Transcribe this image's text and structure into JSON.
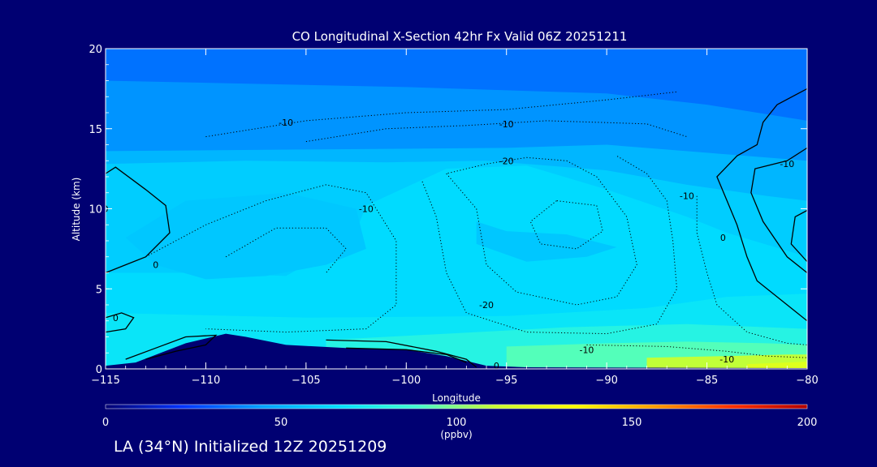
{
  "chart_data": {
    "type": "contour",
    "title": "CO Longitudinal X-Section 42hr  Fx Valid 06Z 20251211",
    "xlabel": "Longitude",
    "ylabel": "Altitude (km)",
    "xlim": [
      -115,
      -80
    ],
    "ylim": [
      0,
      20
    ],
    "x_ticks": [
      "-115",
      "-110",
      "-105",
      "-100",
      "-95",
      "-90",
      "-85",
      "-80"
    ],
    "y_ticks": [
      "0",
      "5",
      "10",
      "15",
      "20"
    ],
    "contour_labels": [
      "-10",
      "-10",
      "-20",
      "-10",
      "-20",
      "-10",
      "-10",
      "-10",
      "-10",
      "0",
      "0",
      "0",
      "0",
      "0"
    ],
    "colorbar": {
      "ticks": [
        "0",
        "50",
        "100",
        "150",
        "200"
      ],
      "unit": "(ppbv)",
      "range": [
        0,
        200
      ],
      "colors": [
        "#000072",
        "#0033ff",
        "#00a0ff",
        "#00e0ff",
        "#40ffd0",
        "#c8ff30",
        "#ffff00",
        "#ffa000",
        "#ff3000",
        "#b00000"
      ]
    },
    "terrain": [
      [
        -115,
        0.2
      ],
      [
        -113.5,
        0.4
      ],
      [
        -111,
        1.6
      ],
      [
        -109,
        2.2
      ],
      [
        -108,
        2.0
      ],
      [
        -106,
        1.5
      ],
      [
        -103,
        1.3
      ],
      [
        -100,
        1.2
      ],
      [
        -98,
        0.8
      ],
      [
        -96,
        0.2
      ],
      [
        -94,
        0.1
      ],
      [
        -80,
        0.05
      ]
    ],
    "bands": [
      {
        "value": 35,
        "pts": [
          [
            -115,
            20
          ],
          [
            -80,
            20
          ],
          [
            -80,
            0
          ],
          [
            -115,
            0
          ]
        ]
      },
      {
        "value": 42,
        "pts": [
          [
            -115,
            18
          ],
          [
            -100,
            17.6
          ],
          [
            -90,
            17.2
          ],
          [
            -85,
            16.5
          ],
          [
            -80,
            15.5
          ],
          [
            -80,
            0
          ],
          [
            -115,
            0
          ]
        ]
      },
      {
        "value": 52,
        "pts": [
          [
            -115,
            13.6
          ],
          [
            -105,
            13.7
          ],
          [
            -95,
            13.8
          ],
          [
            -90,
            14
          ],
          [
            -85,
            13.5
          ],
          [
            -80,
            13
          ],
          [
            -80,
            0
          ],
          [
            -115,
            0
          ]
        ]
      },
      {
        "value": 60,
        "pts": [
          [
            -115,
            12.8
          ],
          [
            -108,
            13
          ],
          [
            -101,
            12.9
          ],
          [
            -96,
            13
          ],
          [
            -90,
            12.4
          ],
          [
            -86,
            11.5
          ],
          [
            -82,
            10.8
          ],
          [
            -80,
            10.5
          ],
          [
            -80,
            0
          ],
          [
            -115,
            0
          ]
        ]
      },
      {
        "value": 65,
        "pts": [
          [
            -115,
            6
          ],
          [
            -110,
            6
          ],
          [
            -106,
            5.8
          ],
          [
            -105,
            6.5
          ],
          [
            -103,
            7
          ],
          [
            -102,
            10.2
          ],
          [
            -98,
            12.5
          ],
          [
            -94,
            12.7
          ],
          [
            -90,
            11.2
          ],
          [
            -86,
            9.5
          ],
          [
            -84,
            8.5
          ],
          [
            -80,
            7
          ],
          [
            -80,
            0
          ],
          [
            -115,
            0
          ]
        ]
      },
      {
        "value": 58,
        "pts": [
          [
            -114,
            8.2
          ],
          [
            -111,
            10.5
          ],
          [
            -106,
            11
          ],
          [
            -102.5,
            10
          ],
          [
            -102,
            7.5
          ],
          [
            -104,
            6.5
          ],
          [
            -107,
            5.8
          ],
          [
            -110,
            5.6
          ],
          [
            -112.5,
            6.5
          ]
        ]
      },
      {
        "value": 58,
        "pts": [
          [
            -96.5,
            9.2
          ],
          [
            -95,
            8.6
          ],
          [
            -92,
            8.4
          ],
          [
            -89.5,
            7.6
          ],
          [
            -91,
            7.0
          ],
          [
            -94,
            6.7
          ],
          [
            -96.5,
            7.8
          ]
        ]
      },
      {
        "value": 70,
        "pts": [
          [
            -115,
            3.5
          ],
          [
            -105,
            3.2
          ],
          [
            -95,
            3.3
          ],
          [
            -88,
            3.8
          ],
          [
            -84,
            4.5
          ],
          [
            -80,
            4.7
          ],
          [
            -80,
            0
          ],
          [
            -115,
            0
          ]
        ]
      },
      {
        "value": 80,
        "pts": [
          [
            -104,
            1.8
          ],
          [
            -98,
            2.2
          ],
          [
            -92,
            2.6
          ],
          [
            -86,
            2.8
          ],
          [
            -82,
            2.6
          ],
          [
            -80,
            2.5
          ],
          [
            -80,
            0
          ],
          [
            -104,
            0
          ]
        ]
      },
      {
        "value": 92,
        "pts": [
          [
            -95,
            1.4
          ],
          [
            -90,
            1.6
          ],
          [
            -86,
            1.7
          ],
          [
            -82,
            1.6
          ],
          [
            -80,
            1.5
          ],
          [
            -80,
            0
          ],
          [
            -95,
            0
          ]
        ]
      },
      {
        "value": 110,
        "pts": [
          [
            -88,
            0.7
          ],
          [
            -84,
            0.8
          ],
          [
            -81,
            0.9
          ],
          [
            -80,
            0.9
          ],
          [
            -80,
            0
          ],
          [
            -88,
            0
          ]
        ]
      },
      {
        "value": 120,
        "pts": [
          [
            -83,
            0.3
          ],
          [
            -80,
            0.45
          ],
          [
            -80,
            0
          ],
          [
            -83,
            0
          ]
        ]
      }
    ],
    "contours": [
      {
        "style": "solid",
        "pts": [
          [
            -115,
            12.2
          ],
          [
            -114.5,
            12.6
          ],
          [
            -113,
            11.2
          ],
          [
            -112,
            10.2
          ],
          [
            -111.8,
            8.5
          ],
          [
            -113,
            7
          ],
          [
            -114,
            6.5
          ],
          [
            -115,
            6
          ]
        ]
      },
      {
        "style": "solid",
        "pts": [
          [
            -115,
            3.2
          ],
          [
            -114.2,
            3.5
          ],
          [
            -113.6,
            3.2
          ],
          [
            -114,
            2.5
          ],
          [
            -115,
            2.3
          ]
        ]
      },
      {
        "style": "solid",
        "pts": [
          [
            -114,
            0.6
          ],
          [
            -112.5,
            1.3
          ],
          [
            -111,
            2.0
          ],
          [
            -109.5,
            2.1
          ],
          [
            -110,
            1.5
          ],
          [
            -111.5,
            1.1
          ],
          [
            -113,
            0.6
          ]
        ]
      },
      {
        "style": "solid",
        "pts": [
          [
            -104,
            1.8
          ],
          [
            -101,
            1.7
          ],
          [
            -98.5,
            1.1
          ],
          [
            -97,
            0.6
          ],
          [
            -96.5,
            0.1
          ]
        ]
      },
      {
        "style": "solid",
        "pts": [
          [
            -103,
            1.3
          ],
          [
            -100,
            1.2
          ],
          [
            -98,
            0.9
          ],
          [
            -97,
            0.4
          ]
        ]
      },
      {
        "style": "solid",
        "pts": [
          [
            -80,
            17.5
          ],
          [
            -81.5,
            16.5
          ],
          [
            -82.2,
            15.4
          ],
          [
            -82.5,
            14
          ],
          [
            -83.5,
            13.3
          ],
          [
            -84.5,
            12
          ],
          [
            -84,
            10.5
          ],
          [
            -83.5,
            9
          ],
          [
            -83,
            7
          ],
          [
            -82.5,
            5.5
          ],
          [
            -81,
            4
          ],
          [
            -80,
            3
          ]
        ]
      },
      {
        "style": "solid",
        "pts": [
          [
            -80,
            13.8
          ],
          [
            -81,
            13
          ],
          [
            -82.6,
            12.5
          ],
          [
            -82.8,
            11
          ],
          [
            -82.2,
            9.2
          ],
          [
            -81,
            7
          ],
          [
            -80,
            6
          ]
        ]
      },
      {
        "style": "solid",
        "pts": [
          [
            -80,
            9.9
          ],
          [
            -80.6,
            9.5
          ],
          [
            -80.8,
            7.8
          ],
          [
            -80,
            6.7
          ]
        ]
      },
      {
        "style": "dotted",
        "pts": [
          [
            -113,
            7
          ],
          [
            -110,
            9
          ],
          [
            -107,
            10.5
          ],
          [
            -104,
            11.5
          ],
          [
            -102,
            11
          ],
          [
            -100.5,
            8
          ],
          [
            -100.5,
            4
          ],
          [
            -102,
            2.5
          ],
          [
            -106,
            2.3
          ],
          [
            -110,
            2.5
          ]
        ]
      },
      {
        "style": "dotted",
        "pts": [
          [
            -109,
            7
          ],
          [
            -106.5,
            8.8
          ],
          [
            -104,
            8.8
          ],
          [
            -103,
            7.5
          ],
          [
            -104,
            6
          ]
        ]
      },
      {
        "style": "dotted",
        "pts": [
          [
            -105,
            14.2
          ],
          [
            -101,
            15
          ],
          [
            -97,
            15.2
          ],
          [
            -93,
            15.5
          ],
          [
            -88,
            15.3
          ],
          [
            -86,
            14.5
          ]
        ]
      },
      {
        "style": "dotted",
        "pts": [
          [
            -110,
            14.5
          ],
          [
            -105,
            15.5
          ],
          [
            -100,
            16
          ],
          [
            -95,
            16.2
          ],
          [
            -90,
            16.8
          ],
          [
            -86.5,
            17.3
          ]
        ]
      },
      {
        "style": "dotted",
        "pts": [
          [
            -98,
            12.2
          ],
          [
            -96.5,
            10
          ],
          [
            -96,
            6.5
          ],
          [
            -94.5,
            4.8
          ],
          [
            -91.5,
            4
          ],
          [
            -89.5,
            4.5
          ],
          [
            -88.5,
            6.5
          ],
          [
            -89,
            9.5
          ],
          [
            -90.5,
            12
          ],
          [
            -92,
            13
          ],
          [
            -94,
            13.2
          ],
          [
            -96,
            12.8
          ],
          [
            -98,
            12.2
          ]
        ]
      },
      {
        "style": "dotted",
        "pts": [
          [
            -92.5,
            10.5
          ],
          [
            -93.8,
            9.2
          ],
          [
            -93.3,
            7.8
          ],
          [
            -91.5,
            7.5
          ],
          [
            -90.2,
            8.6
          ],
          [
            -90.5,
            10.2
          ],
          [
            -92.5,
            10.5
          ]
        ]
      },
      {
        "style": "dotted",
        "pts": [
          [
            -99.2,
            11.7
          ],
          [
            -98.5,
            9.5
          ],
          [
            -98,
            6
          ],
          [
            -97,
            3.5
          ],
          [
            -94,
            2.3
          ],
          [
            -90,
            2.2
          ],
          [
            -87.5,
            2.8
          ],
          [
            -86.5,
            5
          ],
          [
            -86.7,
            8
          ],
          [
            -87,
            10.5
          ],
          [
            -88,
            12.2
          ],
          [
            -89.5,
            13.3
          ]
        ]
      },
      {
        "style": "dotted",
        "pts": [
          [
            -85.5,
            10.8
          ],
          [
            -85.5,
            8.5
          ],
          [
            -85,
            6
          ],
          [
            -84.5,
            4
          ],
          [
            -83,
            2.3
          ],
          [
            -81,
            1.6
          ],
          [
            -80,
            1.5
          ]
        ]
      },
      {
        "style": "dotted",
        "pts": [
          [
            -91,
            1.5
          ],
          [
            -87,
            1.4
          ],
          [
            -84,
            1.1
          ],
          [
            -82,
            0.8
          ],
          [
            -80,
            0.7
          ]
        ]
      }
    ]
  },
  "footer": {
    "text": "LA (34°N) Initialized 12Z 20251209"
  }
}
